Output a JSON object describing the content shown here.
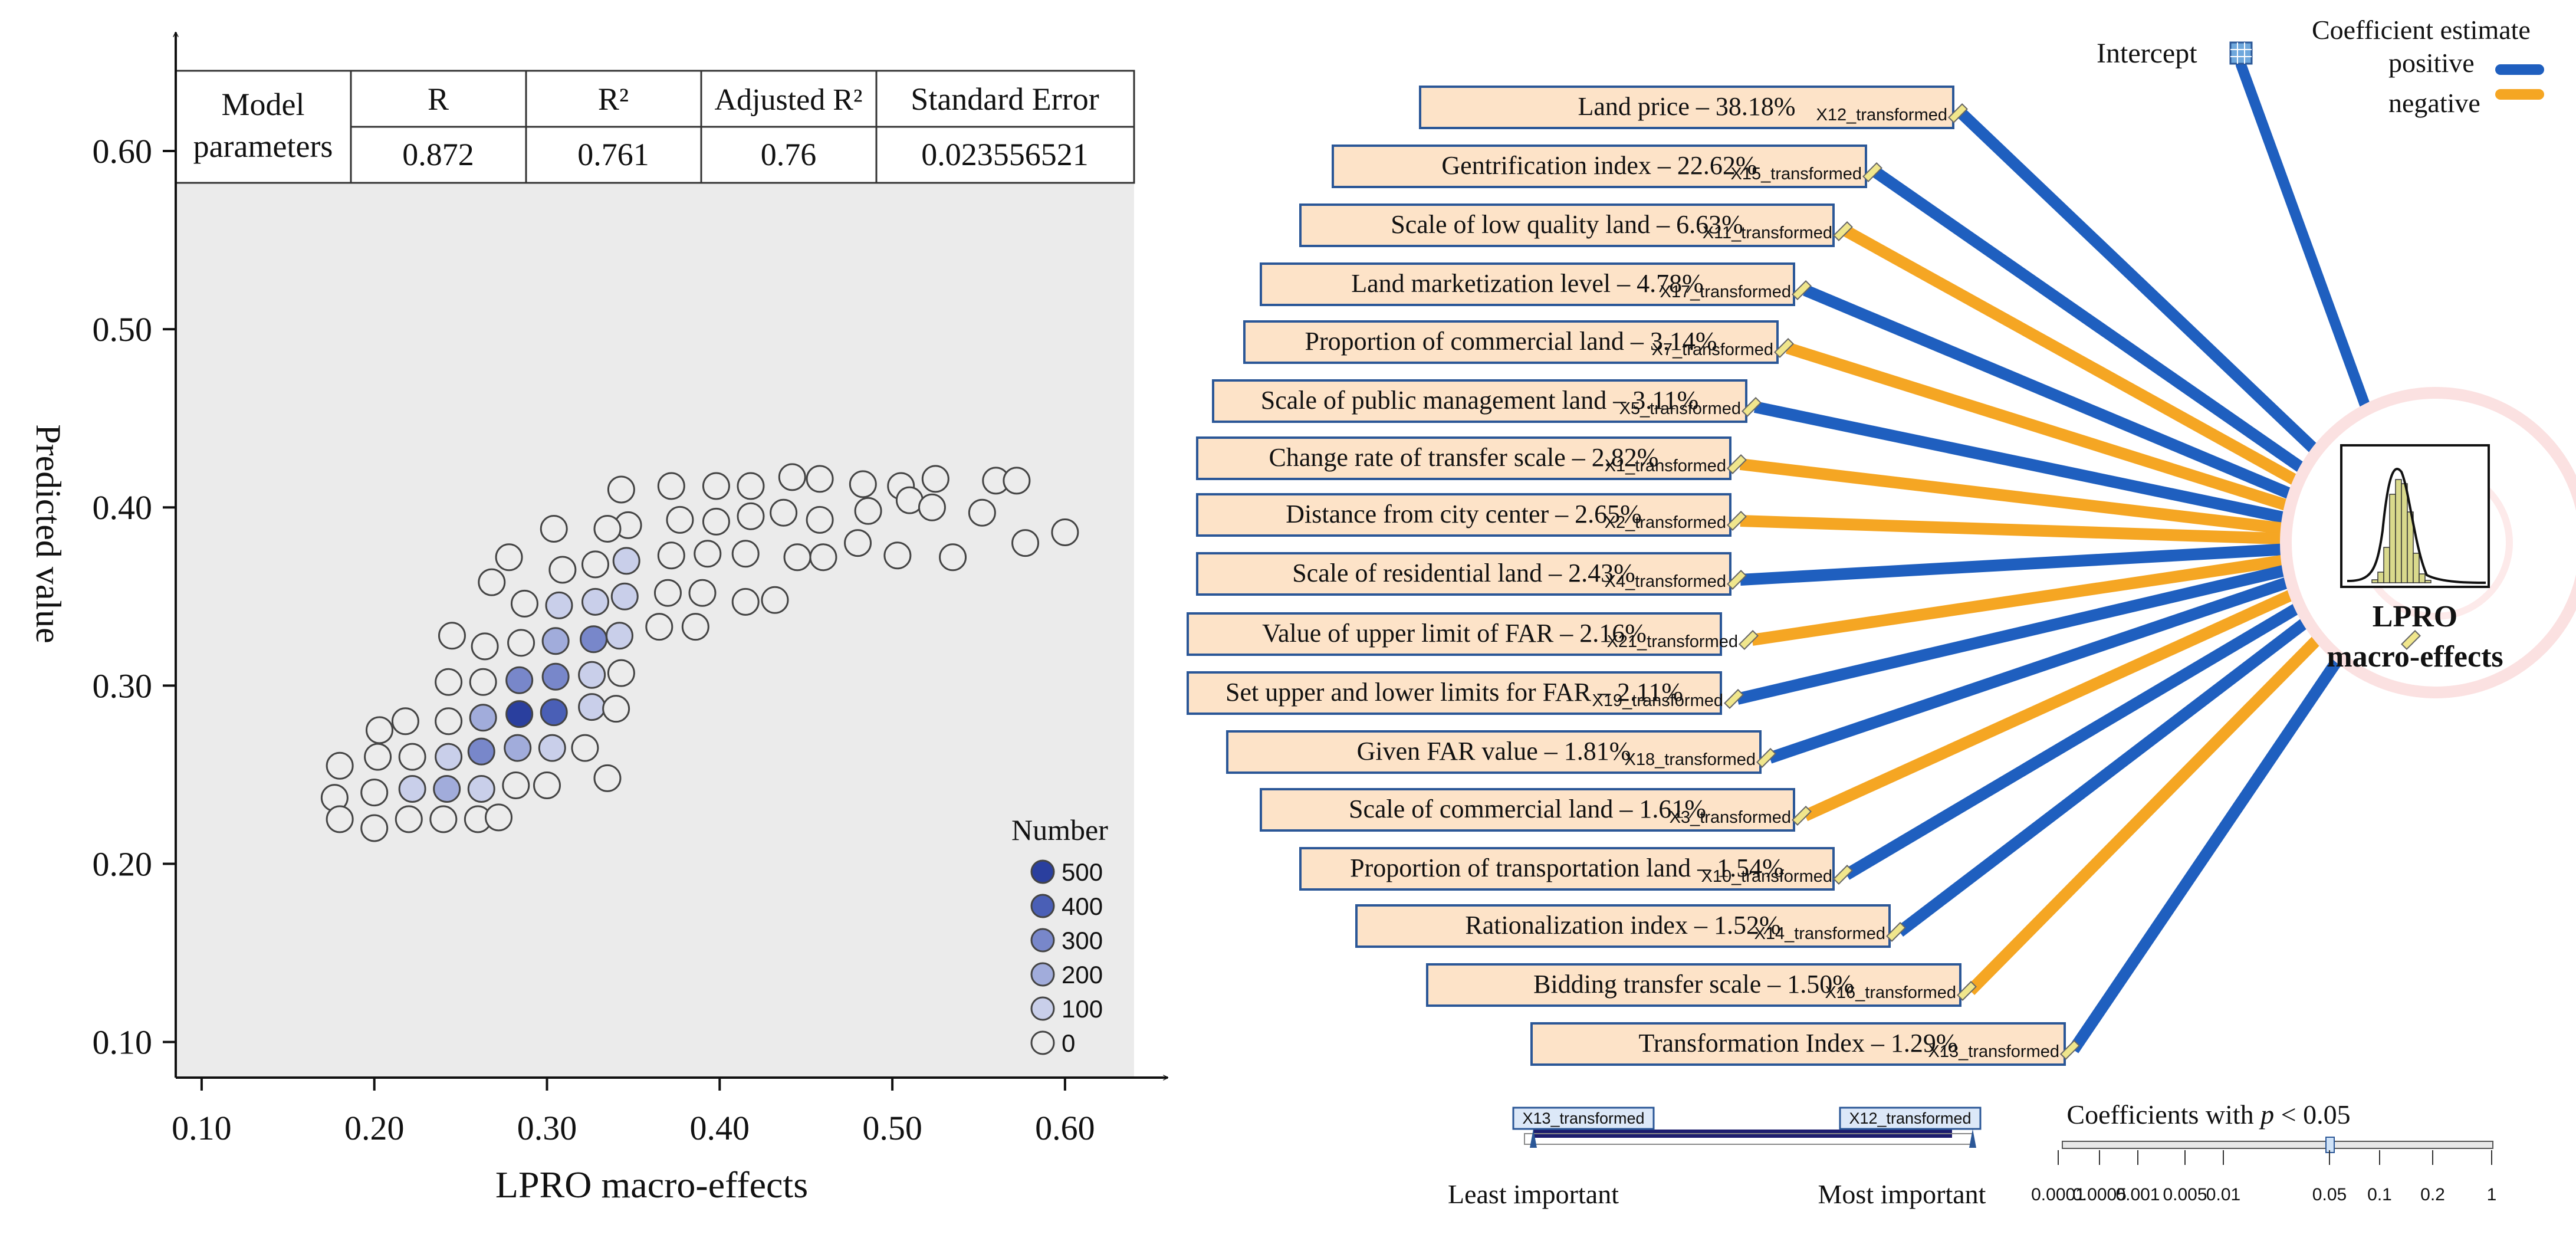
{
  "chart_data": [
    {
      "type": "scatter",
      "xlabel": "LPRO macro-effects",
      "ylabel": "Predicted value",
      "xlim": [
        0.085,
        0.64
      ],
      "ylim": [
        0.08,
        0.645
      ],
      "xticks": [
        "0.10",
        "0.20",
        "0.30",
        "0.40",
        "0.50",
        "0.60"
      ],
      "yticks": [
        "0.10",
        "0.20",
        "0.30",
        "0.40",
        "0.50",
        "0.60"
      ],
      "model_table": {
        "header": [
          "Model",
          "R",
          "R²",
          "Adjusted R²",
          "Standard Error"
        ],
        "row_label": "parameters",
        "values": [
          "0.872",
          "0.761",
          "0.76",
          "0.023556521"
        ]
      },
      "legend": {
        "title": "Number",
        "labels": [
          "500",
          "400",
          "300",
          "200",
          "100",
          "0"
        ],
        "colors": [
          "#2a3f9e",
          "#4a5fb6",
          "#7887ca",
          "#a1acdb",
          "#c9cfea",
          "#ececec"
        ]
      },
      "points": [
        [
          0.177,
          0.237,
          0
        ],
        [
          0.18,
          0.225,
          0
        ],
        [
          0.18,
          0.255,
          0
        ],
        [
          0.2,
          0.22,
          0
        ],
        [
          0.2,
          0.24,
          0
        ],
        [
          0.202,
          0.26,
          0
        ],
        [
          0.203,
          0.275,
          0
        ],
        [
          0.22,
          0.225,
          0
        ],
        [
          0.222,
          0.242,
          1
        ],
        [
          0.222,
          0.26,
          0
        ],
        [
          0.218,
          0.28,
          0
        ],
        [
          0.24,
          0.225,
          0
        ],
        [
          0.242,
          0.242,
          2
        ],
        [
          0.243,
          0.26,
          1
        ],
        [
          0.243,
          0.28,
          0
        ],
        [
          0.243,
          0.302,
          0
        ],
        [
          0.245,
          0.328,
          0
        ],
        [
          0.26,
          0.225,
          0
        ],
        [
          0.262,
          0.242,
          1
        ],
        [
          0.262,
          0.263,
          3
        ],
        [
          0.263,
          0.282,
          2
        ],
        [
          0.263,
          0.302,
          0
        ],
        [
          0.264,
          0.322,
          0
        ],
        [
          0.268,
          0.358,
          0
        ],
        [
          0.272,
          0.226,
          0
        ],
        [
          0.282,
          0.244,
          0
        ],
        [
          0.283,
          0.265,
          2
        ],
        [
          0.284,
          0.284,
          5
        ],
        [
          0.284,
          0.303,
          3
        ],
        [
          0.285,
          0.324,
          0
        ],
        [
          0.287,
          0.346,
          0
        ],
        [
          0.278,
          0.372,
          0
        ],
        [
          0.3,
          0.244,
          0
        ],
        [
          0.303,
          0.265,
          1
        ],
        [
          0.304,
          0.285,
          4
        ],
        [
          0.305,
          0.305,
          3
        ],
        [
          0.305,
          0.325,
          2
        ],
        [
          0.307,
          0.345,
          1
        ],
        [
          0.309,
          0.365,
          0
        ],
        [
          0.304,
          0.388,
          0
        ],
        [
          0.322,
          0.265,
          0
        ],
        [
          0.326,
          0.288,
          1
        ],
        [
          0.326,
          0.306,
          1
        ],
        [
          0.327,
          0.326,
          3
        ],
        [
          0.328,
          0.347,
          1
        ],
        [
          0.328,
          0.368,
          0
        ],
        [
          0.335,
          0.248,
          0
        ],
        [
          0.34,
          0.287,
          0
        ],
        [
          0.343,
          0.307,
          0
        ],
        [
          0.342,
          0.328,
          1
        ],
        [
          0.345,
          0.35,
          1
        ],
        [
          0.346,
          0.37,
          1
        ],
        [
          0.347,
          0.39,
          0
        ],
        [
          0.335,
          0.388,
          0
        ],
        [
          0.343,
          0.41,
          0
        ],
        [
          0.365,
          0.333,
          0
        ],
        [
          0.37,
          0.352,
          0
        ],
        [
          0.372,
          0.373,
          0
        ],
        [
          0.377,
          0.393,
          0
        ],
        [
          0.372,
          0.412,
          0
        ],
        [
          0.386,
          0.333,
          0
        ],
        [
          0.39,
          0.352,
          0
        ],
        [
          0.393,
          0.374,
          0
        ],
        [
          0.398,
          0.392,
          0
        ],
        [
          0.398,
          0.412,
          0
        ],
        [
          0.415,
          0.347,
          0
        ],
        [
          0.415,
          0.374,
          0
        ],
        [
          0.418,
          0.395,
          0
        ],
        [
          0.418,
          0.412,
          0
        ],
        [
          0.432,
          0.348,
          0
        ],
        [
          0.437,
          0.397,
          0
        ],
        [
          0.445,
          0.372,
          0
        ],
        [
          0.442,
          0.417,
          0
        ],
        [
          0.46,
          0.372,
          0
        ],
        [
          0.458,
          0.393,
          0
        ],
        [
          0.458,
          0.416,
          0
        ],
        [
          0.48,
          0.38,
          0
        ],
        [
          0.483,
          0.413,
          0
        ],
        [
          0.486,
          0.398,
          0
        ],
        [
          0.503,
          0.373,
          0
        ],
        [
          0.505,
          0.412,
          0
        ],
        [
          0.51,
          0.404,
          0
        ],
        [
          0.523,
          0.4,
          0
        ],
        [
          0.525,
          0.416,
          0
        ],
        [
          0.535,
          0.372,
          0
        ],
        [
          0.552,
          0.397,
          0
        ],
        [
          0.56,
          0.415,
          0
        ],
        [
          0.572,
          0.415,
          0
        ],
        [
          0.577,
          0.38,
          0
        ],
        [
          0.6,
          0.386,
          0
        ]
      ]
    },
    {
      "type": "bar",
      "title": "LPRO",
      "title2": "macro-effects",
      "intercept_label": "Intercept",
      "legend": {
        "title": "Coefficient estimate",
        "items": [
          {
            "label": "positive",
            "color": "#1f5fbf"
          },
          {
            "label": "negative",
            "color": "#f5a623"
          }
        ]
      },
      "bars": [
        {
          "label": "Land price – 38.18%",
          "value": 38.18,
          "var": "X12_transformed",
          "sign": "positive"
        },
        {
          "label": "Gentrification index – 22.62%",
          "value": 22.62,
          "var": "X15_transformed",
          "sign": "positive"
        },
        {
          "label": "Scale of low quality land – 6.63%",
          "value": 6.63,
          "var": "X11_transformed",
          "sign": "negative"
        },
        {
          "label": "Land marketization level – 4.78%",
          "value": 4.78,
          "var": "X17_transformed",
          "sign": "positive"
        },
        {
          "label": "Proportion of commercial land – 3.14%",
          "value": 3.14,
          "var": "X7_transformed",
          "sign": "negative"
        },
        {
          "label": "Scale of public management land – 3.11%",
          "value": 3.11,
          "var": "X5_transformed",
          "sign": "positive"
        },
        {
          "label": "Change rate of transfer scale – 2.82%",
          "value": 2.82,
          "var": "X1_transformed",
          "sign": "negative"
        },
        {
          "label": "Distance from city center – 2.65%",
          "value": 2.65,
          "var": "X2_transformed",
          "sign": "negative"
        },
        {
          "label": "Scale of residential land – 2.43%",
          "value": 2.43,
          "var": "X4_transformed",
          "sign": "positive"
        },
        {
          "label": "Value of upper limit of FAR – 2.16%",
          "value": 2.16,
          "var": "X21_transformed",
          "sign": "negative"
        },
        {
          "label": "Set upper and lower limits for FAR – 2.11%",
          "value": 2.11,
          "var": "X19_transformed",
          "sign": "positive"
        },
        {
          "label": "Given FAR value – 1.81%",
          "value": 1.81,
          "var": "X18_transformed",
          "sign": "positive"
        },
        {
          "label": "Scale of commercial land – 1.61%",
          "value": 1.61,
          "var": "X3_transformed",
          "sign": "negative"
        },
        {
          "label": "Proportion of transportation land – 1.54%",
          "value": 1.54,
          "var": "X10_transformed",
          "sign": "positive"
        },
        {
          "label": "Rationalization index – 1.52%",
          "value": 1.52,
          "var": "X14_transformed",
          "sign": "positive"
        },
        {
          "label": "Bidding transfer scale – 1.50%",
          "value": 1.5,
          "var": "X16_transformed",
          "sign": "negative"
        },
        {
          "label": "Transformation Index – 1.29%",
          "value": 1.29,
          "var": "X13_transformed",
          "sign": "positive"
        }
      ],
      "importance_scale": {
        "left_tag": "X13_transformed",
        "right_tag": "X12_transformed",
        "left_label": "Least important",
        "right_label": "Most important"
      },
      "p_scale": {
        "title_prefix": "Coefficients with ",
        "title_var": "p",
        "title_suffix": " < 0.05",
        "ticks": [
          "0.0001",
          "0.0005",
          "0.001",
          "0.005",
          "0.01",
          "0.05",
          "0.1",
          "0.2",
          "1"
        ],
        "marker": "0.05"
      }
    }
  ]
}
